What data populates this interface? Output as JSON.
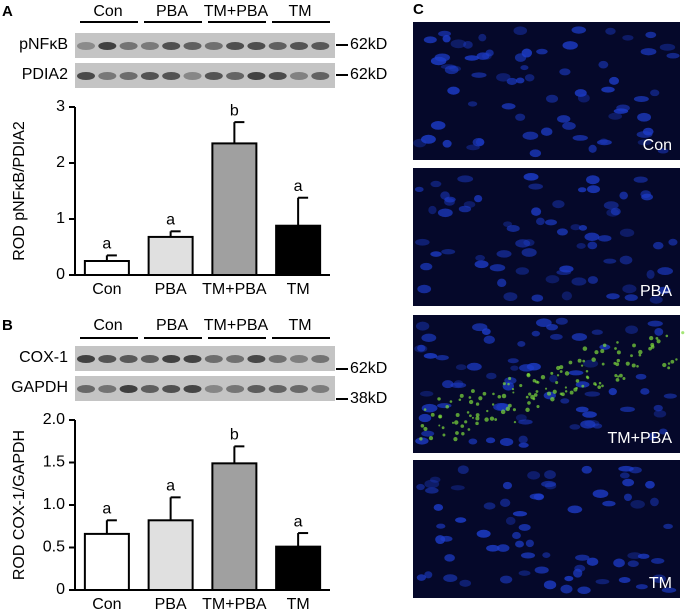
{
  "panels": {
    "a": "A",
    "b": "B",
    "c": "C"
  },
  "blots": [
    {
      "groups": [
        "Con",
        "PBA",
        "TM+PBA",
        "TM"
      ],
      "rows": [
        {
          "label": "pNFκB",
          "size": "62kD"
        },
        {
          "label": "PDIA2",
          "size": "62kD"
        }
      ]
    },
    {
      "groups": [
        "Con",
        "PBA",
        "TM+PBA",
        "TM"
      ],
      "rows": [
        {
          "label": "COX-1",
          "size": "62kD"
        },
        {
          "label": "GAPDH",
          "size": "38kD"
        }
      ]
    }
  ],
  "images": [
    "Con",
    "PBA",
    "TM+PBA",
    "TM"
  ],
  "chart_data": [
    {
      "type": "bar",
      "y_label": "ROD pNFκB/PDIA2",
      "categories": [
        "Con",
        "PBA",
        "TM+PBA",
        "TM"
      ],
      "values": [
        0.25,
        0.68,
        2.35,
        0.88
      ],
      "errors": [
        0.1,
        0.1,
        0.38,
        0.5
      ],
      "letters": [
        "a",
        "a",
        "b",
        "a"
      ],
      "colors": [
        "#ffffff",
        "#e0e0e0",
        "#a0a0a0",
        "#000000"
      ],
      "ylim": [
        0,
        3
      ],
      "yticks": [
        0,
        1,
        2,
        3
      ]
    },
    {
      "type": "bar",
      "y_label": "ROD COX-1/GAPDH",
      "categories": [
        "Con",
        "PBA",
        "TM+PBA",
        "TM"
      ],
      "values": [
        0.66,
        0.82,
        1.49,
        0.51
      ],
      "errors": [
        0.16,
        0.27,
        0.2,
        0.16
      ],
      "letters": [
        "a",
        "a",
        "b",
        "a"
      ],
      "colors": [
        "#ffffff",
        "#e0e0e0",
        "#a0a0a0",
        "#000000"
      ],
      "ylim": [
        0,
        2
      ],
      "yticks": [
        0,
        0.5,
        {
          "value": 1,
          "label": "1.0"
        },
        1.5,
        {
          "value": 2,
          "label": "2.0"
        }
      ]
    }
  ]
}
